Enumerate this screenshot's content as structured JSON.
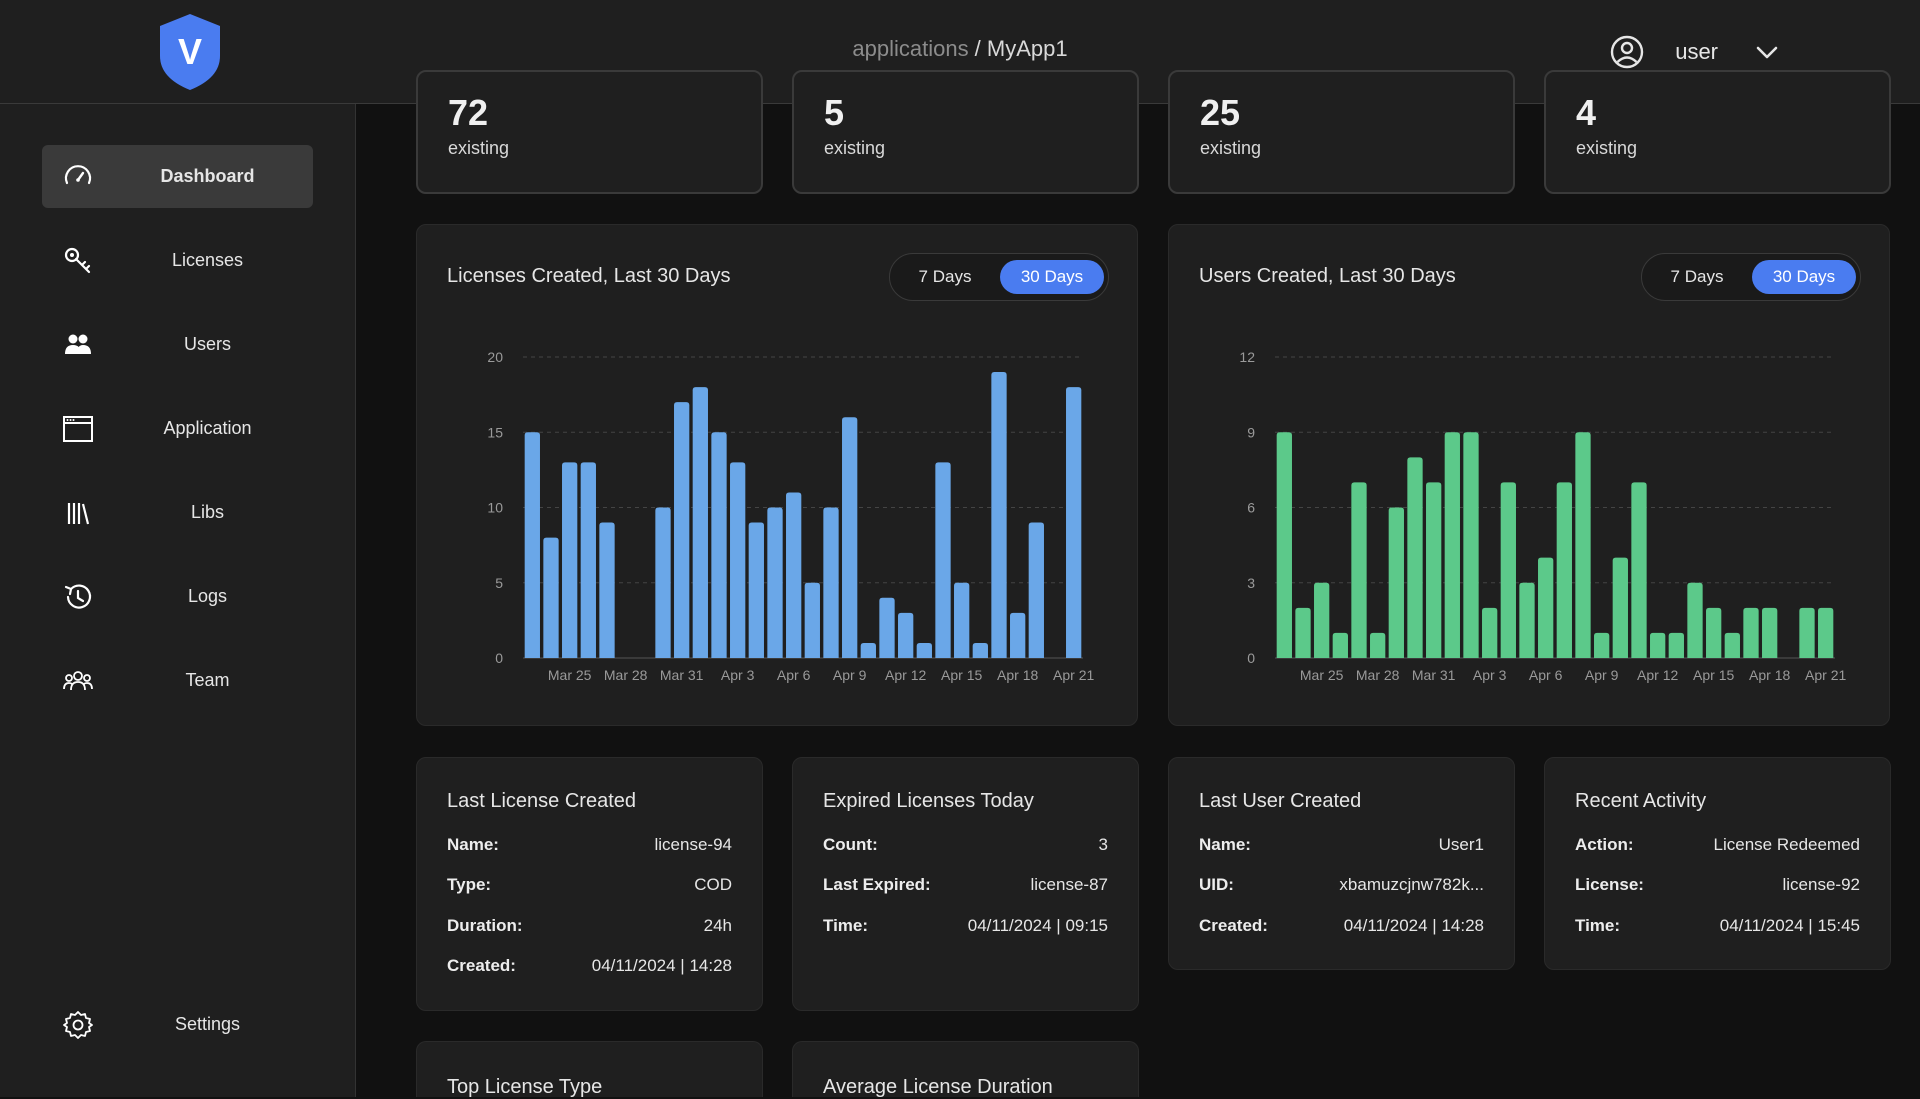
{
  "header": {
    "breadcrumb_parent": "applications",
    "breadcrumb_sep": " / ",
    "breadcrumb_current": "MyApp1",
    "logo_letter": "V",
    "user_name": "user"
  },
  "sidebar": {
    "items": [
      {
        "label": "Dashboard",
        "icon": "gauge-icon"
      },
      {
        "label": "Licenses",
        "icon": "key-icon"
      },
      {
        "label": "Users",
        "icon": "users-icon"
      },
      {
        "label": "Application",
        "icon": "window-icon"
      },
      {
        "label": "Libs",
        "icon": "library-icon"
      },
      {
        "label": "Logs",
        "icon": "history-icon"
      },
      {
        "label": "Team",
        "icon": "team-icon"
      }
    ],
    "settings_label": "Settings"
  },
  "stats": [
    {
      "value": "72",
      "sub": "existing"
    },
    {
      "value": "5",
      "sub": "existing"
    },
    {
      "value": "25",
      "sub": "existing"
    },
    {
      "value": "4",
      "sub": "existing"
    }
  ],
  "toggle": {
    "opt7": "7 Days",
    "opt30": "30 Days"
  },
  "colors": {
    "accent": "#4a7cf0",
    "licenses_bar": "#6aa7e8",
    "users_bar": "#5cc98a"
  },
  "chart_data": [
    {
      "type": "bar",
      "title": "Licenses Created, Last 30 Days",
      "ylim": [
        0,
        20
      ],
      "yticks": [
        0,
        5,
        10,
        15,
        20
      ],
      "xtick_labels": [
        "Mar 25",
        "Mar 28",
        "Mar 31",
        "Apr 3",
        "Apr 6",
        "Apr 9",
        "Apr 12",
        "Apr 15",
        "Apr 18",
        "Apr 21"
      ],
      "values": [
        15,
        8,
        13,
        13,
        9,
        0,
        0,
        10,
        17,
        18,
        15,
        13,
        9,
        10,
        11,
        5,
        10,
        16,
        1,
        4,
        3,
        1,
        13,
        5,
        1,
        19,
        3,
        9,
        0,
        18
      ]
    },
    {
      "type": "bar",
      "title": "Users Created, Last 30 Days",
      "ylim": [
        0,
        12
      ],
      "yticks": [
        0,
        3,
        6,
        9,
        12
      ],
      "xtick_labels": [
        "Mar 25",
        "Mar 28",
        "Mar 31",
        "Apr 3",
        "Apr 6",
        "Apr 9",
        "Apr 12",
        "Apr 15",
        "Apr 18",
        "Apr 21"
      ],
      "values": [
        9,
        2,
        3,
        1,
        7,
        1,
        6,
        8,
        7,
        9,
        9,
        2,
        7,
        3,
        4,
        7,
        9,
        1,
        4,
        7,
        1,
        1,
        3,
        2,
        1,
        2,
        2,
        0,
        2,
        2
      ]
    }
  ],
  "cards": {
    "last_license": {
      "title": "Last License Created",
      "rows": [
        {
          "k": "Name:",
          "v": "license-94"
        },
        {
          "k": "Type:",
          "v": "COD"
        },
        {
          "k": "Duration:",
          "v": "24h"
        },
        {
          "k": "Created:",
          "v": "04/11/2024 | 14:28"
        }
      ]
    },
    "expired": {
      "title": "Expired Licenses Today",
      "rows": [
        {
          "k": "Count:",
          "v": "3"
        },
        {
          "k": "Last Expired:",
          "v": "license-87"
        },
        {
          "k": "Time:",
          "v": "04/11/2024 | 09:15"
        }
      ]
    },
    "last_user": {
      "title": "Last User Created",
      "rows": [
        {
          "k": "Name:",
          "v": "User1"
        },
        {
          "k": "UID:",
          "v": "xbamuzcjnw782k..."
        },
        {
          "k": "Created:",
          "v": "04/11/2024 | 14:28"
        }
      ]
    },
    "recent": {
      "title": "Recent Activity",
      "rows": [
        {
          "k": "Action:",
          "v": "License Redeemed"
        },
        {
          "k": "License:",
          "v": "license-92"
        },
        {
          "k": "Time:",
          "v": "04/11/2024 | 15:45"
        }
      ]
    },
    "top_type": {
      "title": "Top License Type"
    },
    "avg_duration": {
      "title": "Average License Duration"
    }
  }
}
